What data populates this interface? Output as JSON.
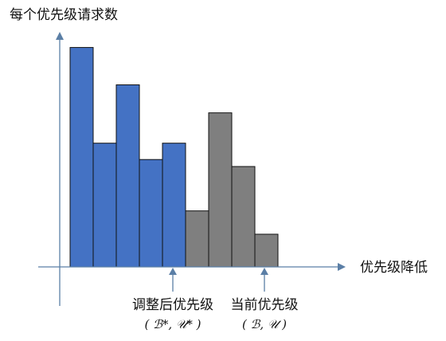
{
  "chart_data": {
    "type": "bar",
    "title": "",
    "ylabel": "每个优先级请求数",
    "xlabel": "优先级降低",
    "ylim": [
      0,
      10
    ],
    "series": [
      {
        "values": [
          9.4,
          5.3,
          7.8,
          4.6,
          5.3,
          null,
          null,
          null,
          null
        ],
        "color": "#4472c4"
      },
      {
        "values": [
          null,
          null,
          null,
          null,
          null,
          2.4,
          6.6,
          4.3,
          1.4
        ],
        "color": "#7f7f7f"
      }
    ],
    "markers": [
      {
        "after_index": 4,
        "label": "调整后优先级",
        "sublabel": "( ℬ*, 𝒰* )"
      },
      {
        "after_index": 8,
        "label": "当前优先级",
        "sublabel": "( ℬ, 𝒰 )"
      }
    ],
    "colors": {
      "axis": "#5b7fa6",
      "bar_border": "#111111"
    }
  }
}
